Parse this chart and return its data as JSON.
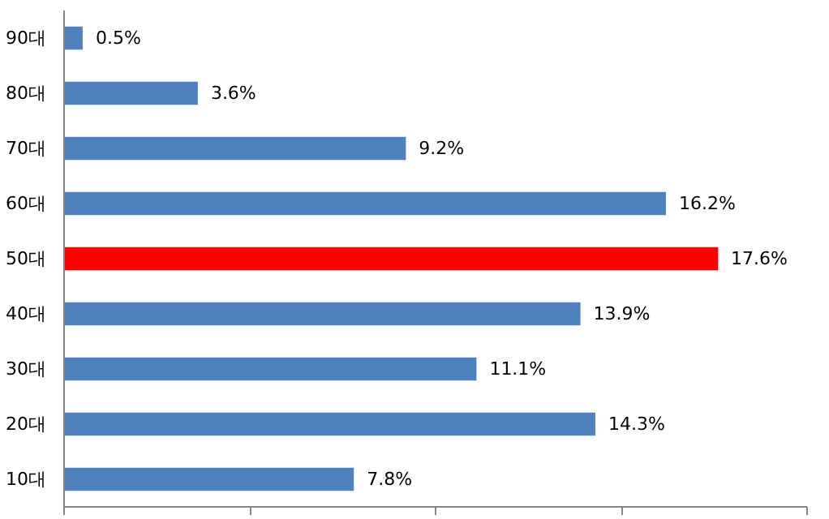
{
  "chart_data": {
    "type": "bar",
    "orientation": "horizontal",
    "categories": [
      "90대",
      "80대",
      "70대",
      "60대",
      "50대",
      "40대",
      "30대",
      "20대",
      "10대"
    ],
    "values": [
      0.5,
      3.6,
      9.2,
      16.2,
      17.6,
      13.9,
      11.1,
      14.3,
      7.8
    ],
    "colors": [
      "#4f81bd",
      "#4f81bd",
      "#4f81bd",
      "#4f81bd",
      "#ff0000",
      "#4f81bd",
      "#4f81bd",
      "#4f81bd",
      "#4f81bd"
    ],
    "value_labels": [
      "0.5%",
      "3.6%",
      "9.2%",
      "16.2%",
      "17.6%",
      "13.9%",
      "11.1%",
      "14.3%",
      "7.8%"
    ],
    "xlim": [
      0,
      20
    ],
    "xticks": [
      {
        "value": 0,
        "label": null
      },
      {
        "value": 5,
        "label": null
      },
      {
        "value": 10,
        "label": null
      },
      {
        "value": 15,
        "label": null
      },
      {
        "value": 20,
        "label": null
      }
    ],
    "tick_labels": "y",
    "grid": false
  }
}
